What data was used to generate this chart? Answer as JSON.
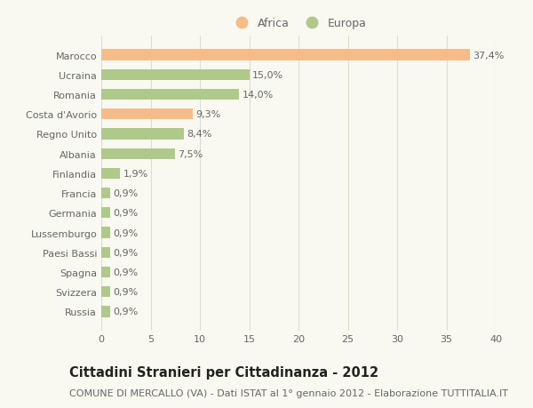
{
  "categories": [
    "Russia",
    "Svizzera",
    "Spagna",
    "Paesi Bassi",
    "Lussemburgo",
    "Germania",
    "Francia",
    "Finlandia",
    "Albania",
    "Regno Unito",
    "Costa d'Avorio",
    "Romania",
    "Ucraina",
    "Marocco"
  ],
  "values": [
    0.9,
    0.9,
    0.9,
    0.9,
    0.9,
    0.9,
    0.9,
    1.9,
    7.5,
    8.4,
    9.3,
    14.0,
    15.0,
    37.4
  ],
  "colors": [
    "#aec98a",
    "#aec98a",
    "#aec98a",
    "#aec98a",
    "#aec98a",
    "#aec98a",
    "#aec98a",
    "#aec98a",
    "#aec98a",
    "#aec98a",
    "#f5bc8a",
    "#aec98a",
    "#aec98a",
    "#f5bc8a"
  ],
  "labels": [
    "0,9%",
    "0,9%",
    "0,9%",
    "0,9%",
    "0,9%",
    "0,9%",
    "0,9%",
    "1,9%",
    "7,5%",
    "8,4%",
    "9,3%",
    "14,0%",
    "15,0%",
    "37,4%"
  ],
  "africa_color": "#f5bc8a",
  "europa_color": "#aec98a",
  "africa_label": "Africa",
  "europa_label": "Europa",
  "title": "Cittadini Stranieri per Cittadinanza - 2012",
  "subtitle": "COMUNE DI MERCALLO (VA) - Dati ISTAT al 1° gennaio 2012 - Elaborazione TUTTITALIA.IT",
  "xlim": [
    0,
    40
  ],
  "xticks": [
    0,
    5,
    10,
    15,
    20,
    25,
    30,
    35,
    40
  ],
  "background_color": "#f9f9f2",
  "grid_color": "#ddddcc",
  "bar_height": 0.55,
  "label_fontsize": 8,
  "tick_fontsize": 8,
  "title_fontsize": 10.5,
  "subtitle_fontsize": 8
}
